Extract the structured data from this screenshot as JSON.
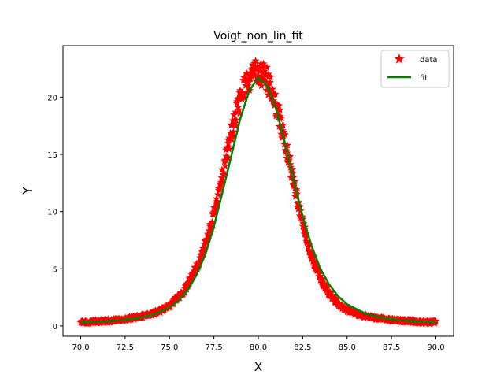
{
  "chart_data": {
    "type": "scatter",
    "title": "Voigt_non_lin_fit",
    "xlabel": "X",
    "ylabel": "Y",
    "xlim": [
      69.0,
      91.0
    ],
    "ylim": [
      -0.9,
      24.5
    ],
    "xticks": [
      "70.0",
      "72.5",
      "75.0",
      "77.5",
      "80.0",
      "82.5",
      "85.0",
      "87.5",
      "90.0"
    ],
    "xtick_values": [
      70.0,
      72.5,
      75.0,
      77.5,
      80.0,
      82.5,
      85.0,
      87.5,
      90.0
    ],
    "yticks": [
      "0",
      "5",
      "10",
      "15",
      "20"
    ],
    "ytick_values": [
      0,
      5,
      10,
      15,
      20
    ],
    "grid": false,
    "legend_position": "top-right",
    "series": [
      {
        "name": "data",
        "kind": "scatter",
        "marker": "star",
        "color": "#ff0000",
        "x": [
          70.0,
          70.5,
          71.0,
          71.5,
          72.0,
          72.5,
          73.0,
          73.5,
          74.0,
          74.5,
          75.0,
          75.5,
          76.0,
          76.5,
          77.0,
          77.25,
          77.5,
          77.75,
          78.0,
          78.25,
          78.5,
          78.75,
          79.0,
          79.25,
          79.5,
          79.75,
          80.0,
          80.25,
          80.5,
          80.75,
          81.0,
          81.25,
          81.5,
          81.75,
          82.0,
          82.25,
          82.5,
          82.75,
          83.0,
          83.5,
          84.0,
          84.5,
          85.0,
          85.5,
          86.0,
          86.5,
          87.0,
          87.5,
          88.0,
          88.5,
          89.0,
          89.5,
          90.0
        ],
        "y": [
          0.3,
          0.35,
          0.4,
          0.45,
          0.5,
          0.6,
          0.7,
          0.85,
          1.05,
          1.35,
          1.8,
          2.5,
          3.5,
          5.0,
          7.0,
          8.3,
          9.8,
          11.5,
          13.3,
          15.2,
          16.9,
          18.5,
          19.8,
          20.9,
          21.6,
          22.0,
          22.2,
          22.0,
          21.5,
          20.5,
          19.3,
          17.8,
          16.1,
          14.3,
          12.4,
          10.6,
          8.9,
          7.4,
          6.1,
          4.1,
          2.8,
          1.9,
          1.4,
          1.05,
          0.85,
          0.7,
          0.6,
          0.5,
          0.45,
          0.4,
          0.35,
          0.32,
          0.3
        ]
      },
      {
        "name": "fit",
        "kind": "line",
        "color": "#008000",
        "x": [
          70.0,
          71.0,
          72.0,
          73.0,
          74.0,
          75.0,
          75.5,
          76.0,
          76.5,
          77.0,
          77.5,
          78.0,
          78.5,
          79.0,
          79.5,
          80.0,
          80.5,
          81.0,
          81.5,
          82.0,
          82.5,
          83.0,
          83.5,
          84.0,
          84.5,
          85.0,
          86.0,
          87.0,
          88.0,
          89.0,
          90.0
        ],
        "y": [
          0.3,
          0.38,
          0.48,
          0.65,
          0.95,
          1.6,
          2.2,
          3.1,
          4.4,
          6.2,
          8.7,
          11.8,
          15.0,
          18.2,
          20.6,
          21.7,
          21.0,
          19.0,
          16.0,
          12.7,
          9.6,
          7.0,
          5.0,
          3.6,
          2.6,
          1.9,
          1.1,
          0.7,
          0.5,
          0.4,
          0.3
        ]
      }
    ]
  }
}
